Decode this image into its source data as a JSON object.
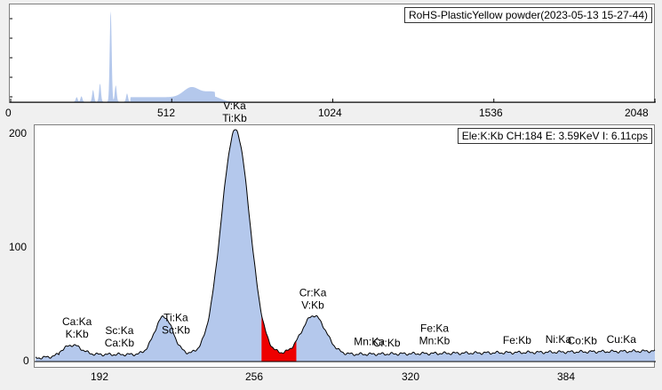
{
  "overview": {
    "title": "RoHS-PlasticYellow powder(2023-05-13 15-27-44)",
    "x_ticks": [
      "0",
      "512",
      "1024",
      "1536",
      "2048"
    ]
  },
  "main": {
    "status": "Ele:K:Kb CH:184  E: 3.59KeV I:  6.11cps",
    "y_ticks": [
      "200",
      "100",
      "0"
    ],
    "x_ticks": [
      "192",
      "256",
      "320",
      "384"
    ]
  },
  "colors": {
    "spectrum_fill": "#b4c8ec",
    "highlight": "#ee0000",
    "line": "#000000"
  },
  "peak_labels": [
    {
      "lines": [
        "Ca:Ka",
        "K:Kb"
      ],
      "ch": 180.5
    },
    {
      "lines": [
        "Sc:Ka",
        "Ca:Kb"
      ],
      "ch": 200
    },
    {
      "lines": [
        "Ti:Ka",
        "Sc:Kb"
      ],
      "ch": 226
    },
    {
      "lines": [
        "V:Ka",
        "Ti:Kb"
      ],
      "ch": 253
    },
    {
      "lines": [
        "Cr:Ka",
        "V:Kb"
      ],
      "ch": 289
    },
    {
      "lines": [
        "Mn:Ka"
      ],
      "ch": 315
    },
    {
      "lines": [
        "Cr:Kb"
      ],
      "ch": 323
    },
    {
      "lines": [
        "Fe:Ka",
        "Mn:Kb"
      ],
      "ch": 345
    },
    {
      "lines": [
        "Fe:Kb"
      ],
      "ch": 383
    },
    {
      "lines": [
        "Ni:Ka"
      ],
      "ch": 402
    },
    {
      "lines": [
        "Co:Kb"
      ],
      "ch": 413
    },
    {
      "lines": [
        "Cu:Ka"
      ],
      "ch": 431
    }
  ],
  "chart_data": {
    "type": "area",
    "xlabel": "",
    "ylabel": "",
    "xlim": [
      161,
      446
    ],
    "ylim": [
      0,
      200
    ],
    "baseline": 6,
    "highlight_range": [
      265,
      281
    ],
    "peaks": [
      {
        "ch": 178,
        "height": 8,
        "width": 4
      },
      {
        "ch": 220,
        "height": 32,
        "width": 4.2
      },
      {
        "ch": 253,
        "height": 190,
        "width": 6.5
      },
      {
        "ch": 289,
        "height": 33,
        "width": 5.5
      }
    ],
    "overview_xlim": [
      0,
      2048
    ],
    "overview_peaks": [
      {
        "ch": 210,
        "height": 0.05
      },
      {
        "ch": 225,
        "height": 0.06
      },
      {
        "ch": 262,
        "height": 0.13
      },
      {
        "ch": 284,
        "height": 0.2
      },
      {
        "ch": 318,
        "height": 1.0
      },
      {
        "ch": 334,
        "height": 0.18
      },
      {
        "ch": 370,
        "height": 0.09
      },
      {
        "ch": 575,
        "height": 0.11
      },
      {
        "ch": 640,
        "height": 0.06
      }
    ]
  }
}
